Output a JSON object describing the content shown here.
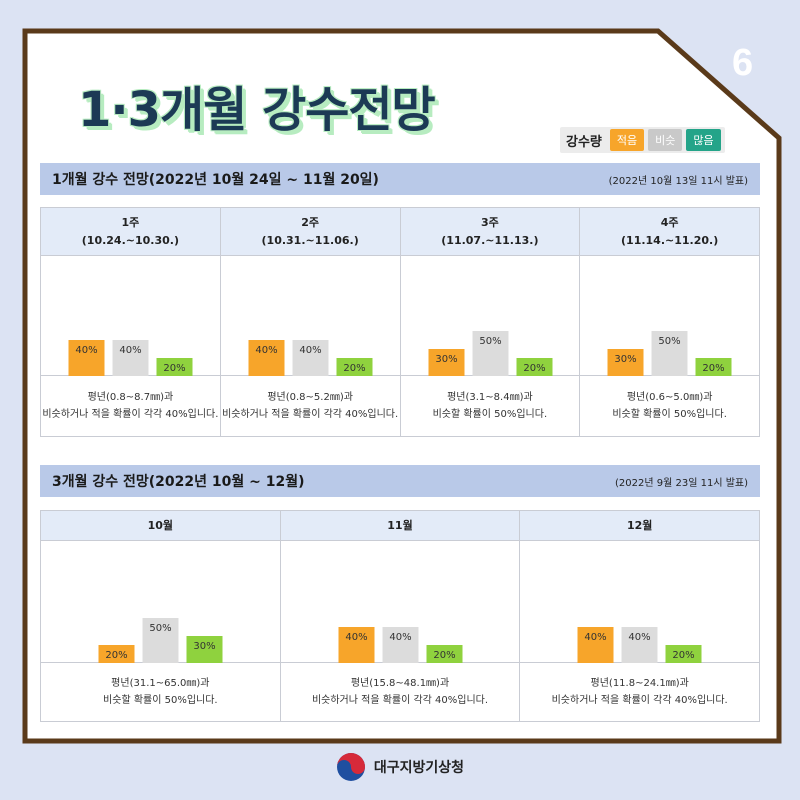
{
  "page_number": "6",
  "title": "1·3개월 강수전망",
  "legend": {
    "label": "강수량",
    "items": [
      {
        "label": "적음",
        "color": "#f7a52a"
      },
      {
        "label": "비슷",
        "color": "#d4d4d4"
      },
      {
        "label": "많음",
        "color": "#24a489"
      }
    ]
  },
  "colors": {
    "below": "#f7a52a",
    "normal": "#dcdcdc",
    "above": "#8fd23e",
    "frame": "#5a3a1a",
    "header": "#b9c9e8"
  },
  "chart_data": [
    {
      "type": "bar",
      "title": "1개월 강수 전망(2022년 10월 24일 ~ 11월 20일)",
      "note": "(2022년 10월 13일 11시 발표)",
      "panels": [
        {
          "label": "1주",
          "period": "(10.24.~10.30.)",
          "values": [
            40,
            40,
            20
          ],
          "labels": [
            "40%",
            "40%",
            "20%"
          ],
          "desc_line1": "평년(0.8~8.7㎜)과",
          "desc_line2": "비슷하거나 적을 확률이 각각 40%입니다."
        },
        {
          "label": "2주",
          "period": "(10.31.~11.06.)",
          "values": [
            40,
            40,
            20
          ],
          "labels": [
            "40%",
            "40%",
            "20%"
          ],
          "desc_line1": "평년(0.8~5.2㎜)과",
          "desc_line2": "비슷하거나 적을 확률이 각각 40%입니다."
        },
        {
          "label": "3주",
          "period": "(11.07.~11.13.)",
          "values": [
            30,
            50,
            20
          ],
          "labels": [
            "30%",
            "50%",
            "20%"
          ],
          "desc_line1": "평년(3.1~8.4㎜)과",
          "desc_line2": "비슷할 확률이 50%입니다."
        },
        {
          "label": "4주",
          "period": "(11.14.~11.20.)",
          "values": [
            30,
            50,
            20
          ],
          "labels": [
            "30%",
            "50%",
            "20%"
          ],
          "desc_line1": "평년(0.6~5.0㎜)과",
          "desc_line2": "비슷할 확률이 50%입니다."
        }
      ]
    },
    {
      "type": "bar",
      "title": "3개월 강수 전망(2022년 10월 ~ 12월)",
      "note": "(2022년 9월 23일 11시 발표)",
      "panels": [
        {
          "label": "10월",
          "values": [
            20,
            50,
            30
          ],
          "labels": [
            "20%",
            "50%",
            "30%"
          ],
          "desc_line1": "평년(31.1~65.0㎜)과",
          "desc_line2": "비슷할 확률이 50%입니다."
        },
        {
          "label": "11월",
          "values": [
            40,
            40,
            20
          ],
          "labels": [
            "40%",
            "40%",
            "20%"
          ],
          "desc_line1": "평년(15.8~48.1㎜)과",
          "desc_line2": "비슷하거나 적을 확률이 각각 40%입니다."
        },
        {
          "label": "12월",
          "values": [
            40,
            40,
            20
          ],
          "labels": [
            "40%",
            "40%",
            "20%"
          ],
          "desc_line1": "평년(11.8~24.1㎜)과",
          "desc_line2": "비슷하거나 적을 확률이 각각 40%입니다."
        }
      ]
    }
  ],
  "footer": {
    "org": "대구지방기상청",
    "logo_icon": "taegeuk-icon"
  }
}
